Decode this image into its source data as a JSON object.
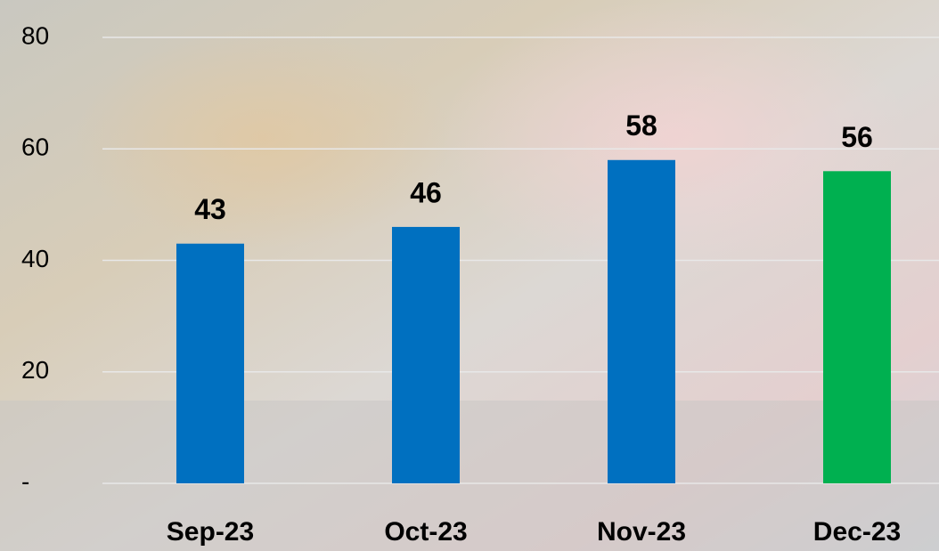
{
  "chart_data": {
    "type": "bar",
    "categories": [
      "Sep-23",
      "Oct-23",
      "Nov-23",
      "Dec-23"
    ],
    "values": [
      43,
      46,
      58,
      56
    ],
    "colors": [
      "#0070c0",
      "#0070c0",
      "#0070c0",
      "#00b050"
    ],
    "ylim": [
      0,
      80
    ],
    "yticks": [
      {
        "value": 0,
        "label": "-"
      },
      20,
      40,
      60,
      80
    ],
    "grid": true
  }
}
